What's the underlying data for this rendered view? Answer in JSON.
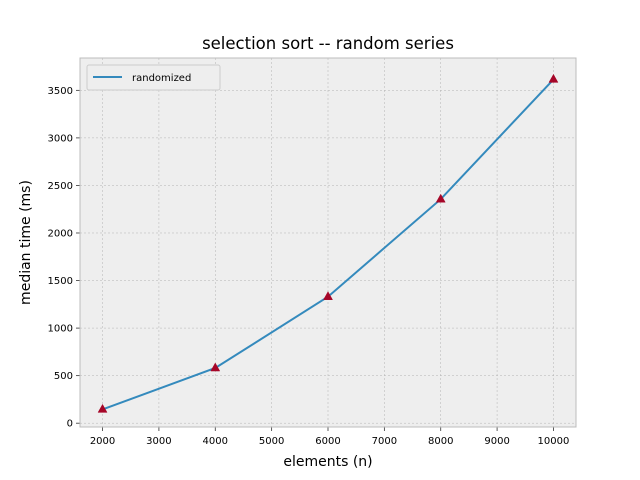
{
  "chart_data": {
    "type": "line",
    "title": "selection sort -- random series",
    "xlabel": "elements (n)",
    "ylabel": "median time (ms)",
    "xlim": [
      1600,
      10400
    ],
    "ylim": [
      -40,
      3840
    ],
    "xticks": [
      2000,
      3000,
      4000,
      5000,
      6000,
      7000,
      8000,
      9000,
      10000
    ],
    "yticks": [
      0,
      500,
      1000,
      1500,
      2000,
      2500,
      3000,
      3500
    ],
    "grid": true,
    "legend_position": "top-left",
    "series": [
      {
        "name": "randomized",
        "color": "#348abd",
        "marker": "triangle",
        "marker_color": "#a60628",
        "x": [
          2000,
          4000,
          6000,
          8000,
          10000
        ],
        "y": [
          145,
          580,
          1330,
          2355,
          3615
        ]
      }
    ]
  }
}
